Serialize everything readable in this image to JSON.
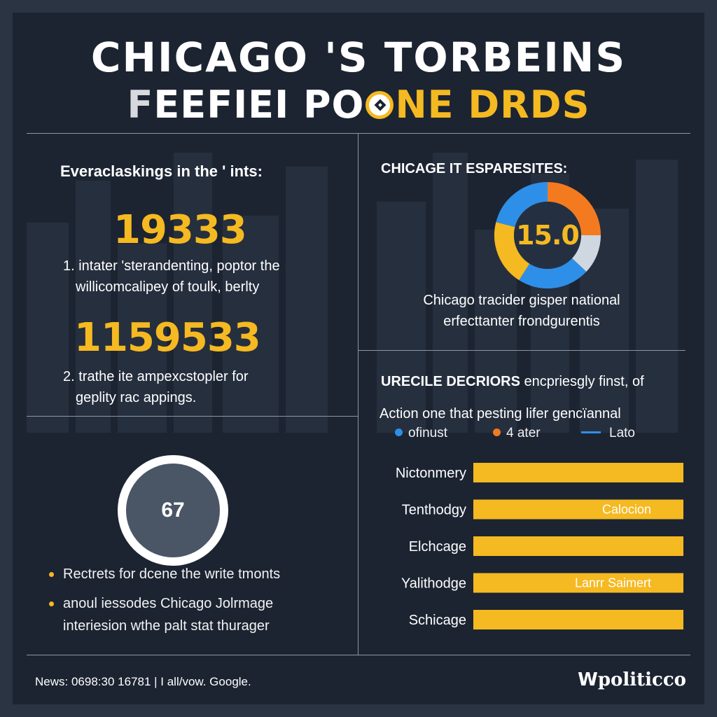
{
  "header": {
    "line1": "CHICAGO 'S TORBEINS",
    "line2_part1": "F",
    "line2_part2": "EEFIEI PO",
    "line2_part3": "NE DRDS"
  },
  "left_panel": {
    "heading": "Everaclaskings in the ' ints:",
    "stat1_value": "19333",
    "stat1_line1": "1. intater 'sterandenting, poptor the",
    "stat1_line2": "willicomcalipey of toulk, berlty",
    "stat2_value": "1159533",
    "stat2_line1": "2. trathe ite ampexcstopler for",
    "stat2_line2": "geplity rac appings.",
    "gauge_value": "67",
    "bullet1": "Rectrets for dcene the write tmonts",
    "bullet2_line1": "anoul iessodes Chicago Jolrmage",
    "bullet2_line2": "interiesion wthe palt stat thurager"
  },
  "right_top": {
    "heading": "CHICAGE IT ESPARESITES:",
    "donut_label": "15.0",
    "caption_line1": "Chicago tracider gisper national",
    "caption_line2": "erfecttanter frondgurentis"
  },
  "right_bottom": {
    "heading_bold": "URECILE DECRIORS",
    "heading_rest": " encpriesgly finst, of",
    "subheading": "Action one that pesting lifer gencïannal"
  },
  "chart_data": [
    {
      "type": "pie",
      "donut": true,
      "center_label": "15.0",
      "slices": [
        {
          "value": 25,
          "color": "#f47a20"
        },
        {
          "value": 12,
          "color": "#cfd8e0"
        },
        {
          "value": 22,
          "color": "#2e8fe8"
        },
        {
          "value": 20,
          "color": "#f5b921"
        },
        {
          "value": 21,
          "color": "#2e8fe8"
        }
      ]
    },
    {
      "type": "bar",
      "orientation": "horizontal",
      "categories": [
        "Nictonmery",
        "Tenthodgy",
        "Elchcage",
        "Yalithodge",
        "Schicage"
      ],
      "values": [
        100,
        100,
        100,
        100,
        100
      ],
      "bar_labels": [
        "",
        "Calocion",
        "",
        "Lanrr Saimert",
        ""
      ],
      "legend": [
        {
          "label": "ofinust",
          "marker": "dot",
          "color": "#2e8fe8"
        },
        {
          "label": "4 ater",
          "marker": "dot",
          "color": "#f47a20"
        },
        {
          "label": "Lato",
          "marker": "line",
          "color": "#2e8fe8"
        }
      ],
      "bar_color": "#f5b921"
    }
  ],
  "footer": {
    "left_text": "News: 0698:30 16781  |  I all/vow. Google.",
    "logo_mark": "W",
    "logo_text": "politicco"
  }
}
